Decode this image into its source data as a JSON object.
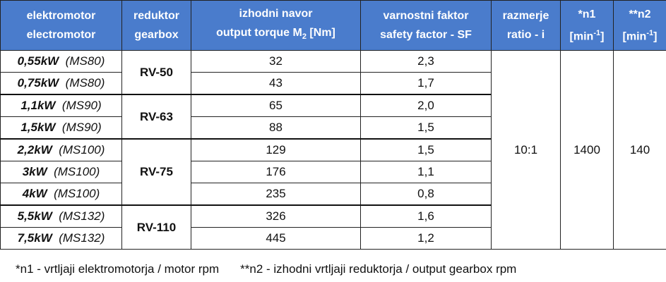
{
  "table": {
    "header": [
      {
        "lines": [
          [
            {
              "text": "elektromotor"
            }
          ],
          [
            {
              "text": "electromotor"
            }
          ]
        ]
      },
      {
        "lines": [
          [
            {
              "text": "reduktor"
            }
          ],
          [
            {
              "text": "gearbox"
            }
          ]
        ]
      },
      {
        "lines": [
          [
            {
              "text": "izhodni navor"
            }
          ],
          [
            {
              "text": "output torque M"
            },
            {
              "sub": "2"
            },
            {
              "text": " [Nm]"
            }
          ]
        ]
      },
      {
        "lines": [
          [
            {
              "text": "varnostni faktor"
            }
          ],
          [
            {
              "text": "safety factor - SF"
            }
          ]
        ]
      },
      {
        "lines": [
          [
            {
              "text": "razmerje"
            }
          ],
          [
            {
              "text": "ratio  - i"
            }
          ]
        ]
      },
      {
        "lines": [
          [
            {
              "text": "*n1"
            }
          ],
          [
            {
              "text": "[min"
            },
            {
              "sup": "-1"
            },
            {
              "text": "]"
            }
          ]
        ]
      },
      {
        "lines": [
          [
            {
              "text": "**n2"
            }
          ],
          [
            {
              "text": "[min"
            },
            {
              "sup": "-1"
            },
            {
              "text": "]"
            }
          ]
        ]
      }
    ],
    "groups": [
      {
        "gearbox": "RV-50",
        "motors": [
          {
            "power": "0,55kW",
            "frame": "(MS80)",
            "torque": 32,
            "sf": "2,3"
          },
          {
            "power": "0,75kW",
            "frame": "(MS80)",
            "torque": 43,
            "sf": "1,7"
          }
        ]
      },
      {
        "gearbox": "RV-63",
        "motors": [
          {
            "power": "1,1kW",
            "frame": "(MS90)",
            "torque": 65,
            "sf": "2,0"
          },
          {
            "power": "1,5kW",
            "frame": "(MS90)",
            "torque": 88,
            "sf": "1,5"
          }
        ]
      },
      {
        "gearbox": "RV-75",
        "motors": [
          {
            "power": "2,2kW",
            "frame": "(MS100)",
            "torque": 129,
            "sf": "1,5"
          },
          {
            "power": "3kW",
            "frame": "(MS100)",
            "torque": 176,
            "sf": "1,1"
          },
          {
            "power": "4kW",
            "frame": "(MS100)",
            "torque": 235,
            "sf": "0,8"
          }
        ]
      },
      {
        "gearbox": "RV-110",
        "motors": [
          {
            "power": "5,5kW",
            "frame": "(MS132)",
            "torque": 326,
            "sf": "1,6"
          },
          {
            "power": "7,5kW",
            "frame": "(MS132)",
            "torque": 445,
            "sf": "1,2"
          }
        ]
      }
    ],
    "ratio": "10:1",
    "n1": 1400,
    "n2": 140
  },
  "footnotes": [
    "*n1 - vrtljaji elektromotorja / motor rpm",
    "**n2 - izhodni vrtljaji reduktorja / output gearbox rpm"
  ]
}
